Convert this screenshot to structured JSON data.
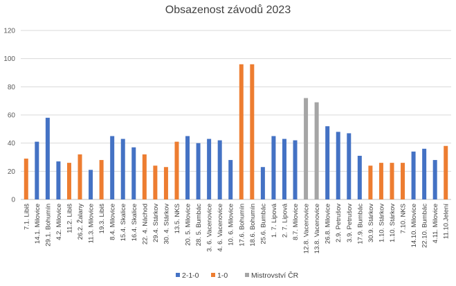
{
  "chart_data": {
    "type": "bar",
    "title": "Obsazenost závodů 2023",
    "xlabel": "",
    "ylabel": "",
    "ylim": [
      0,
      120
    ],
    "yticks": [
      0,
      20,
      40,
      60,
      80,
      100,
      120
    ],
    "grid": true,
    "legend_position": "bottom",
    "categories": [
      "7.1. Libiš",
      "14.1. Milovice",
      "29.1. Bohumín",
      "4.2. Milovice",
      "11.2. Libiš",
      "26.2. Žalany",
      "11.3. Milovice",
      "19.3. Libiš",
      "8.4. Milovice",
      "15.4. Skalice",
      "16.4. Skalice",
      "22. 4. Náchod",
      "29.4. Stárkov",
      "30. 4. Stárkov",
      "13.5. NKS",
      "20. 5. Milovice",
      "28. 5. Bumbác",
      "3. 6. Vacenovice",
      "4. 6. Vacenovice",
      "10. 6. Milovice",
      "17.6. Bohumín",
      "18.6. Bohumín",
      "25.6. Bumbác",
      "1. 7. Lipová",
      "2. 7. Lipová",
      "8.7. Milovice",
      "12.8. Vacenovice",
      "13.8. Vacenovice",
      "26.8. Milovice",
      "2.9. Petrušov",
      "3.9. Petrušov",
      "17.9. Bumbác",
      "30.9. Stárkov",
      "1.10. Stárkov",
      "1.10. Stárkov",
      "7.10. NKS",
      "14.10. Milovice",
      "22.10. Bumbác",
      "4.11. Milovice",
      "11.10.Jelení"
    ],
    "values": [
      29,
      41,
      58,
      27,
      26,
      32,
      21,
      28,
      45,
      43,
      37,
      32,
      24,
      23,
      41,
      45,
      40,
      43,
      42,
      28,
      96,
      96,
      23,
      45,
      43,
      42,
      72,
      69,
      52,
      48,
      47,
      31,
      24,
      26,
      26,
      26,
      34,
      36,
      28,
      38
    ],
    "series_of_point": [
      1,
      0,
      0,
      0,
      1,
      1,
      0,
      1,
      0,
      0,
      0,
      1,
      1,
      1,
      1,
      0,
      0,
      0,
      0,
      0,
      1,
      1,
      0,
      0,
      0,
      0,
      2,
      2,
      0,
      0,
      0,
      0,
      1,
      1,
      1,
      1,
      0,
      0,
      0,
      1
    ],
    "series": [
      {
        "name": "2-1-0",
        "color": "#4472C4"
      },
      {
        "name": "1-0",
        "color": "#ED7D31"
      },
      {
        "name": "Mistrovství ČR",
        "color": "#A5A5A5"
      }
    ]
  }
}
